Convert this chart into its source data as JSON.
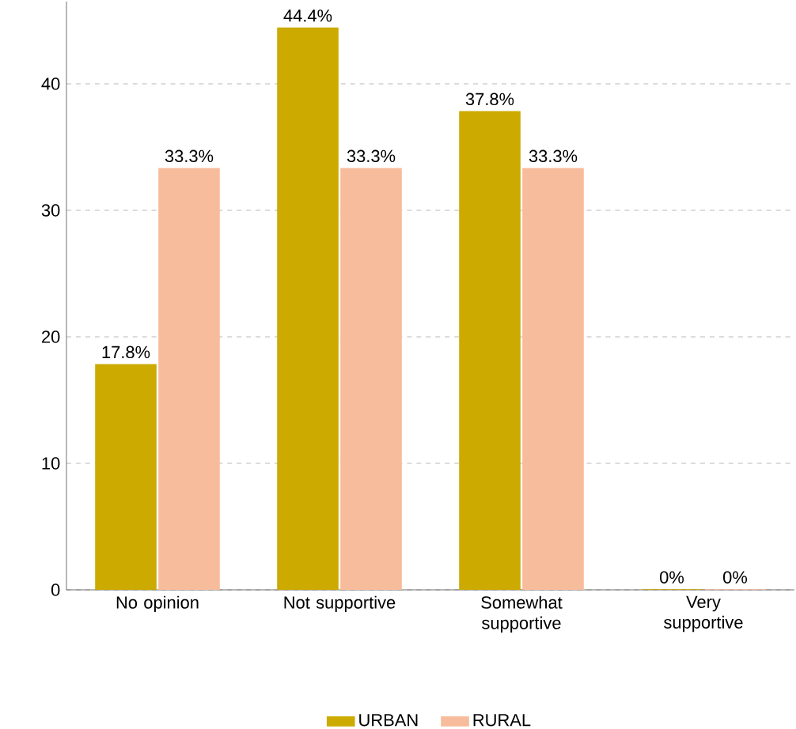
{
  "chart_data": {
    "type": "bar",
    "categories": [
      "No opinion",
      "Not supportive",
      "Somewhat supportive",
      "Very supportive"
    ],
    "series": [
      {
        "name": "URBAN",
        "color": "#ccaa00",
        "values": [
          17.8,
          44.4,
          37.8,
          0
        ],
        "value_labels": [
          "17.8%",
          "44.4%",
          "37.8%",
          "0%"
        ]
      },
      {
        "name": "RURAL",
        "color": "#f7bc9c",
        "values": [
          33.3,
          33.3,
          33.3,
          0
        ],
        "value_labels": [
          "33.3%",
          "33.3%",
          "33.3%",
          "0%"
        ]
      }
    ],
    "ylim": [
      0,
      46.5
    ],
    "yticks": [
      0,
      10,
      20,
      30,
      40
    ],
    "grid": "y",
    "legend": "bottom"
  }
}
